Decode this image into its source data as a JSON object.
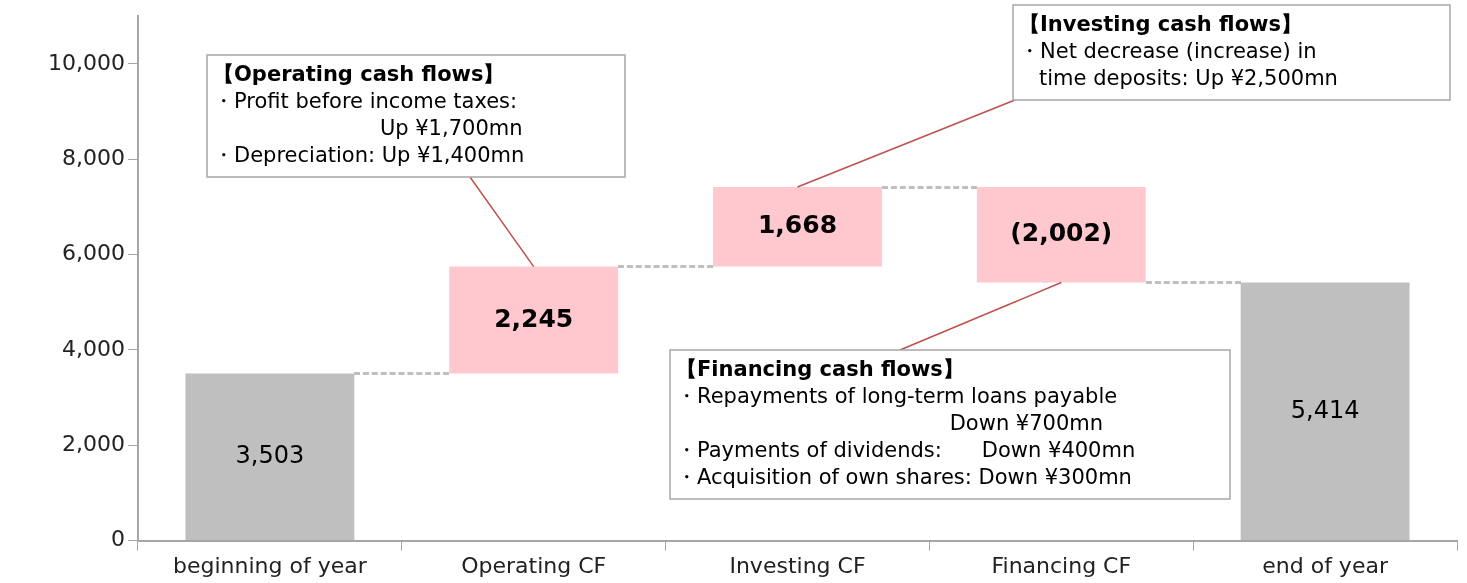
{
  "chart_data": {
    "type": "bar",
    "categories": [
      "beginning of year",
      "Operating CF",
      "Investing CF",
      "Financing CF",
      "end of year"
    ],
    "values": [
      3503,
      2245,
      1668,
      -2002,
      5414
    ],
    "base": [
      0,
      3503,
      5748,
      7416,
      0
    ],
    "colors": [
      "#bfbfbf",
      "#ffc7ce",
      "#ffc7ce",
      "#ffc7ce",
      "#bfbfbf"
    ],
    "value_labels": [
      "3,503",
      "2,245",
      "1,668",
      "(2,002)",
      "5,414"
    ],
    "ylim": [
      0,
      11000
    ],
    "yticks": [
      {
        "value": 0,
        "label": "0"
      },
      {
        "value": 2000,
        "label": "2,000"
      },
      {
        "value": 4000,
        "label": "4,000"
      },
      {
        "value": 6000,
        "label": "6,000"
      },
      {
        "value": 8000,
        "label": "8,000"
      },
      {
        "value": 10000,
        "label": "10,000"
      }
    ],
    "grid": false,
    "legend": false,
    "annotations": [
      "【Operating cash flows】",
      {
        "text": "・Profit before income taxes:\n                         Up ¥1,700mn\n・Depreciation: Up ¥1,400mn",
        "x": "Operating CF",
        "y": 5748
      },
      "【Investing cash flows】",
      {
        "text": "・Net decrease (increase) in\n   time deposits: Up ¥2,500mn",
        "x": "Investing CF",
        "y": 7416
      },
      {
        "text": "【Financing cash flows】",
        "x": "Financing CF",
        "y": 5414
      },
      "・Repayments of long-term loans payable\n                                         Down ¥700mn\n・Payments of dividends:      Down ¥400mn\n・Acquisition of own shares: Down ¥300mn"
    ]
  }
}
